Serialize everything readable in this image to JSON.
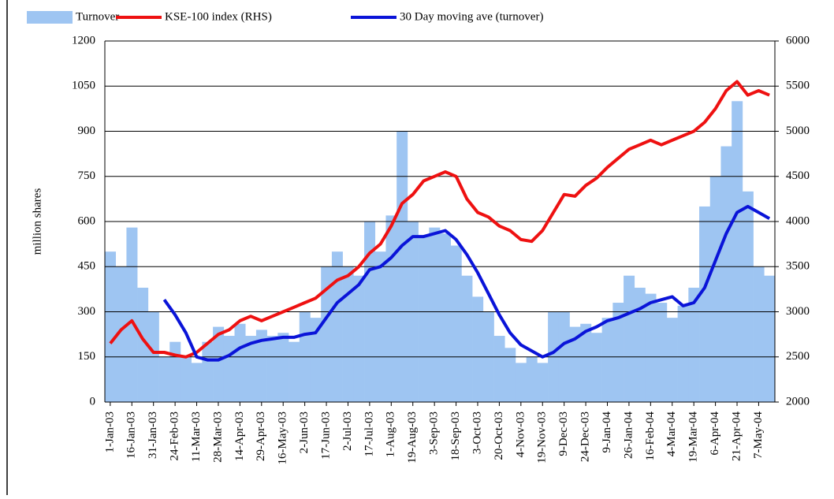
{
  "chart_data": {
    "type": "bar-line",
    "y_label": "million shares",
    "categories": [
      "1-Jan-03",
      null,
      "16-Jan-03",
      null,
      "31-Jan-03",
      null,
      "24-Feb-03",
      null,
      "11-Mar-03",
      null,
      "28-Mar-03",
      null,
      "14-Apr-03",
      null,
      "29-Apr-03",
      null,
      "16-May-03",
      null,
      "2-Jun-03",
      null,
      "17-Jun-03",
      null,
      "2-Jul-03",
      null,
      "17-Jul-03",
      null,
      "1-Aug-03",
      null,
      "19-Aug-03",
      null,
      "3-Sep-03",
      null,
      "18-Sep-03",
      null,
      "3-Oct-03",
      null,
      "20-Oct-03",
      null,
      "4-Nov-03",
      null,
      "19-Nov-03",
      null,
      "9-Dec-03",
      null,
      "24-Dec-03",
      null,
      "9-Jan-04",
      null,
      "26-Jan-04",
      null,
      "16-Feb-04",
      null,
      "4-Mar-04",
      null,
      "19-Mar-04",
      null,
      "6-Apr-04",
      null,
      "21-Apr-04",
      null,
      "7-May-04",
      null
    ],
    "series": [
      {
        "name": "Turnover",
        "kind": "bar",
        "color": "#9ec5f2",
        "axis": "y",
        "values": [
          500,
          450,
          580,
          380,
          300,
          150,
          200,
          150,
          130,
          200,
          250,
          220,
          260,
          220,
          240,
          220,
          230,
          200,
          300,
          280,
          450,
          500,
          450,
          420,
          600,
          500,
          620,
          900,
          600,
          550,
          580,
          560,
          520,
          420,
          350,
          300,
          220,
          180,
          130,
          150,
          130,
          300,
          300,
          250,
          260,
          230,
          280,
          330,
          420,
          380,
          360,
          330,
          280,
          320,
          380,
          650,
          750,
          850,
          1000,
          700,
          450,
          420
        ]
      },
      {
        "name": "KSE-100 index (RHS)",
        "kind": "line",
        "color": "#ee1111",
        "axis": "y2",
        "values": [
          2650,
          2800,
          2900,
          2700,
          2550,
          2550,
          2520,
          2500,
          2550,
          2650,
          2750,
          2800,
          2900,
          2950,
          2900,
          2950,
          3000,
          3050,
          3100,
          3150,
          3250,
          3350,
          3400,
          3500,
          3650,
          3750,
          3950,
          4200,
          4300,
          4450,
          4500,
          4550,
          4500,
          4250,
          4100,
          4050,
          3950,
          3900,
          3800,
          3780,
          3900,
          4100,
          4300,
          4280,
          4400,
          4480,
          4600,
          4700,
          4800,
          4850,
          4900,
          4850,
          4900,
          4950,
          5000,
          5100,
          5250,
          5450,
          5550,
          5400,
          5450,
          5400
        ]
      },
      {
        "name": "30 Day moving ave (turnover)",
        "kind": "line",
        "color": "#0a14d8",
        "axis": "y",
        "values": [
          null,
          null,
          null,
          null,
          null,
          340,
          290,
          230,
          150,
          140,
          140,
          155,
          180,
          195,
          205,
          210,
          215,
          215,
          225,
          230,
          280,
          330,
          360,
          390,
          440,
          450,
          480,
          520,
          550,
          550,
          560,
          570,
          540,
          490,
          430,
          360,
          290,
          230,
          190,
          170,
          150,
          165,
          195,
          210,
          235,
          250,
          270,
          280,
          295,
          310,
          330,
          340,
          350,
          320,
          330,
          380,
          470,
          560,
          630,
          650,
          630,
          610
        ]
      }
    ],
    "ylim": [
      0,
      1200
    ],
    "yticks": [
      0,
      150,
      300,
      450,
      600,
      750,
      900,
      1050,
      1200
    ],
    "y2lim": [
      2000,
      6000
    ],
    "y2ticks": [
      2000,
      2500,
      3000,
      3500,
      4000,
      4500,
      5000,
      5500,
      6000
    ],
    "grid": true,
    "legend": "top"
  }
}
